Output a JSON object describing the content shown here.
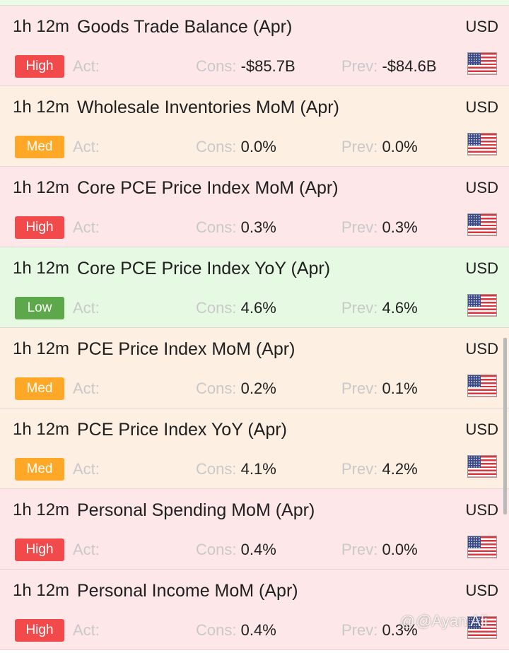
{
  "events": [
    {
      "time": "1h 12m",
      "title": "Goods Trade Balance (Apr)",
      "currency": "USD",
      "impact": "High",
      "impact_level": "high",
      "act_label": "Act:",
      "act_value": "",
      "cons_label": "Cons:",
      "cons_value": "-$85.7B",
      "prev_label": "Prev:",
      "prev_value": "-$84.6B",
      "flag_icon": "us-flag-icon"
    },
    {
      "time": "1h 12m",
      "title": "Wholesale Inventories MoM (Apr)",
      "currency": "USD",
      "impact": "Med",
      "impact_level": "med",
      "act_label": "Act:",
      "act_value": "",
      "cons_label": "Cons:",
      "cons_value": "0.0%",
      "prev_label": "Prev:",
      "prev_value": "0.0%",
      "flag_icon": "us-flag-icon"
    },
    {
      "time": "1h 12m",
      "title": "Core PCE Price Index MoM (Apr)",
      "currency": "USD",
      "impact": "High",
      "impact_level": "high",
      "act_label": "Act:",
      "act_value": "",
      "cons_label": "Cons:",
      "cons_value": "0.3%",
      "prev_label": "Prev:",
      "prev_value": "0.3%",
      "flag_icon": "us-flag-icon"
    },
    {
      "time": "1h 12m",
      "title": "Core PCE Price Index YoY (Apr)",
      "currency": "USD",
      "impact": "Low",
      "impact_level": "low",
      "act_label": "Act:",
      "act_value": "",
      "cons_label": "Cons:",
      "cons_value": "4.6%",
      "prev_label": "Prev:",
      "prev_value": "4.6%",
      "flag_icon": "us-flag-icon"
    },
    {
      "time": "1h 12m",
      "title": "PCE Price Index MoM (Apr)",
      "currency": "USD",
      "impact": "Med",
      "impact_level": "med",
      "act_label": "Act:",
      "act_value": "",
      "cons_label": "Cons:",
      "cons_value": "0.2%",
      "prev_label": "Prev:",
      "prev_value": "0.1%",
      "flag_icon": "us-flag-icon"
    },
    {
      "time": "1h 12m",
      "title": "PCE Price Index YoY (Apr)",
      "currency": "USD",
      "impact": "Med",
      "impact_level": "med",
      "act_label": "Act:",
      "act_value": "",
      "cons_label": "Cons:",
      "cons_value": "4.1%",
      "prev_label": "Prev:",
      "prev_value": "4.2%",
      "flag_icon": "us-flag-icon"
    },
    {
      "time": "1h 12m",
      "title": "Personal Spending MoM (Apr)",
      "currency": "USD",
      "impact": "High",
      "impact_level": "high",
      "act_label": "Act:",
      "act_value": "",
      "cons_label": "Cons:",
      "cons_value": "0.4%",
      "prev_label": "Prev:",
      "prev_value": "0.0%",
      "flag_icon": "us-flag-icon"
    },
    {
      "time": "1h 12m",
      "title": "Personal Income MoM (Apr)",
      "currency": "USD",
      "impact": "High",
      "impact_level": "high",
      "act_label": "Act:",
      "act_value": "",
      "cons_label": "Cons:",
      "cons_value": "0.4%",
      "prev_label": "Prev:",
      "prev_value": "0.3%",
      "flag_icon": "us-flag-icon"
    }
  ],
  "watermark": {
    "icon": "threads-icon",
    "text": "@Ayan Ali"
  },
  "colors": {
    "high_badge": "#f24a4a",
    "med_badge": "#ffa726",
    "low_badge": "#5da84a",
    "high_row": "#fde7e8",
    "med_row": "#fdefe2",
    "low_row": "#e6f9e3"
  }
}
